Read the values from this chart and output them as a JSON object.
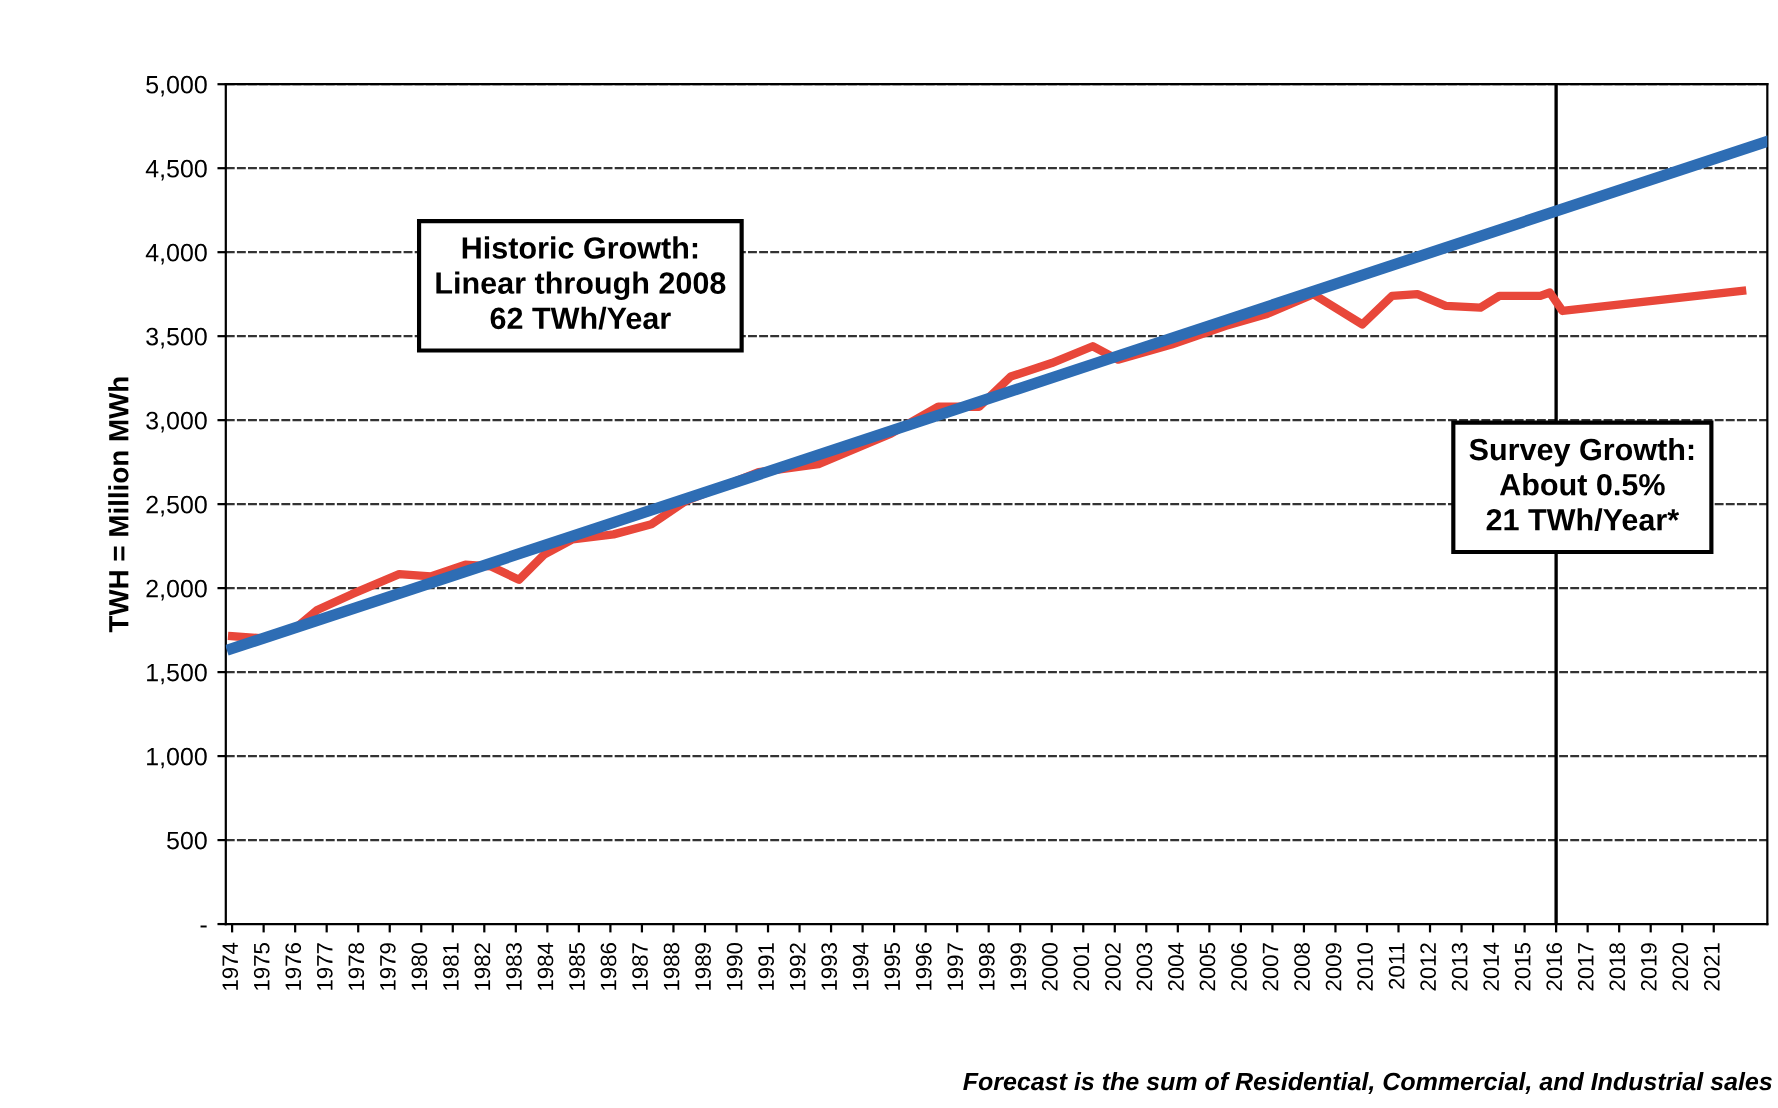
{
  "chart_data": {
    "type": "line",
    "ylabel": "TWH = Million MWh",
    "annotations": [
      "Historic Growth:\nLinear through 2008\n62 TWh/Year",
      "Survey Growth:\nAbout 0.5%\n21 TWh/Year*",
      "Forecast is the sum of Residential, Commercial, and Industrial sales"
    ],
    "series": [
      {
        "color": "#e8473a",
        "x": [
          1974,
          1975,
          1976,
          1976.7,
          1977.8,
          1979.3,
          1980.3,
          1981.4,
          1982.2,
          1983.1,
          1983.9,
          1984.8,
          1986.1,
          1987.3,
          1988.4,
          1990.7,
          1992.6,
          1994.9,
          1996.4,
          1997.7,
          1998.7,
          2000,
          2001.3,
          2002.1,
          2003.8,
          2005.5,
          2006.8,
          2008.3,
          2009.85,
          2010.8,
          2011.6,
          2012.5,
          2013.6,
          2014.2,
          2015.5,
          2015.8,
          2016.2,
          2021.9
        ],
        "values": [
          1714,
          1700,
          1760,
          1870,
          1964,
          2083,
          2070,
          2140,
          2130,
          2050,
          2200,
          2290,
          2320,
          2380,
          2520,
          2690,
          2738,
          2920,
          3080,
          3080,
          3260,
          3340,
          3440,
          3360,
          3450,
          3560,
          3630,
          3750,
          3570,
          3740,
          3750,
          3680,
          3670,
          3740,
          3740,
          3760,
          3650,
          3770
        ]
      },
      {
        "color": "#2e6db4",
        "x": [
          1974,
          2022.7
        ],
        "values": [
          1640,
          4660
        ]
      }
    ],
    "xlim": [
      1973.8,
      2022.7
    ],
    "xticks": [
      1974,
      1975,
      1976,
      1977,
      1978,
      1979,
      1980,
      1981,
      1982,
      1983,
      1984,
      1985,
      1986,
      1987,
      1988,
      1989,
      1990,
      1991,
      1992,
      1993,
      1994,
      1995,
      1996,
      1997,
      1998,
      1999,
      2000,
      2001,
      2002,
      2003,
      2004,
      2005,
      2006,
      2007,
      2008,
      2009,
      2010,
      2011,
      2012,
      2013,
      2014,
      2015,
      2016,
      2017,
      2018,
      2019,
      2020,
      2021
    ],
    "ylim": [
      0,
      5000
    ],
    "yticks": [
      {
        "value": 0,
        "label": "-"
      },
      500,
      {
        "value": 1000,
        "label": "1,000"
      },
      {
        "value": 1500,
        "label": "1,500"
      },
      {
        "value": 2000,
        "label": "2,000"
      },
      {
        "value": 2500,
        "label": "2,500"
      },
      {
        "value": 3000,
        "label": "3,000"
      },
      {
        "value": 3500,
        "label": "3,500"
      },
      {
        "value": 4000,
        "label": "4,000"
      },
      {
        "value": 4500,
        "label": "4,500"
      },
      {
        "value": 5000,
        "label": "5,000"
      }
    ],
    "ref_lines": [
      {
        "axis": "x",
        "value": 2016,
        "color": "#000000"
      }
    ],
    "grid": "y",
    "marker": "none",
    "line_style": "solid"
  }
}
